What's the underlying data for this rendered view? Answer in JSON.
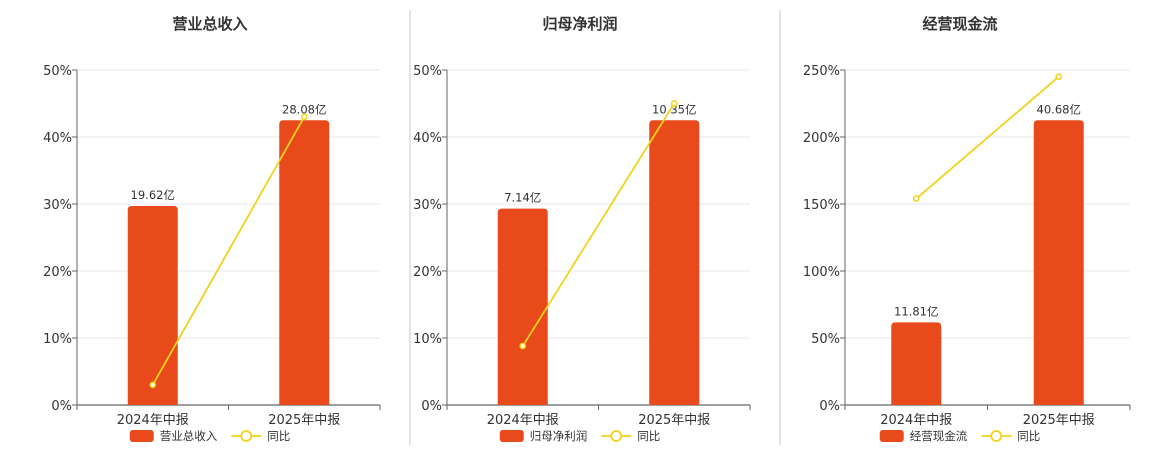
{
  "chart_data": [
    {
      "type": "bar",
      "title": "营业总收入",
      "categories": [
        "2024年中报",
        "2025年中报"
      ],
      "series": [
        {
          "name": "营业总收入",
          "type": "bar",
          "values": [
            19.62,
            28.08
          ],
          "labels": [
            "19.62亿",
            "28.08亿"
          ],
          "color": "#e84a1b"
        },
        {
          "name": "同比",
          "type": "line",
          "values": [
            3,
            43
          ],
          "color": "#f2d21b"
        }
      ],
      "ylim": [
        0,
        50
      ],
      "yticks": [
        "0%",
        "10%",
        "20%",
        "30%",
        "40%",
        "50%"
      ],
      "legend": "bottom-center",
      "grid": true
    },
    {
      "type": "bar",
      "title": "归母净利润",
      "categories": [
        "2024年中报",
        "2025年中报"
      ],
      "series": [
        {
          "name": "归母净利润",
          "type": "bar",
          "values": [
            7.14,
            10.35
          ],
          "labels": [
            "7.14亿",
            "10.35亿"
          ],
          "color": "#e84a1b"
        },
        {
          "name": "同比",
          "type": "line",
          "values": [
            8.8,
            45
          ],
          "color": "#f2d21b"
        }
      ],
      "ylim": [
        0,
        50
      ],
      "yticks": [
        "0%",
        "10%",
        "20%",
        "30%",
        "40%",
        "50%"
      ],
      "legend": "bottom-center",
      "grid": true
    },
    {
      "type": "bar",
      "title": "经营现金流",
      "categories": [
        "2024年中报",
        "2025年中报"
      ],
      "series": [
        {
          "name": "经营现金流",
          "type": "bar",
          "values": [
            11.81,
            40.68
          ],
          "labels": [
            "11.81亿",
            "40.68亿"
          ],
          "color": "#e84a1b"
        },
        {
          "name": "同比",
          "type": "line",
          "values": [
            154,
            245
          ],
          "color": "#f2d21b"
        }
      ],
      "ylim": [
        0,
        250
      ],
      "yticks": [
        "0%",
        "50%",
        "100%",
        "150%",
        "200%",
        "250%"
      ],
      "legend": "bottom-center",
      "grid": true
    }
  ]
}
